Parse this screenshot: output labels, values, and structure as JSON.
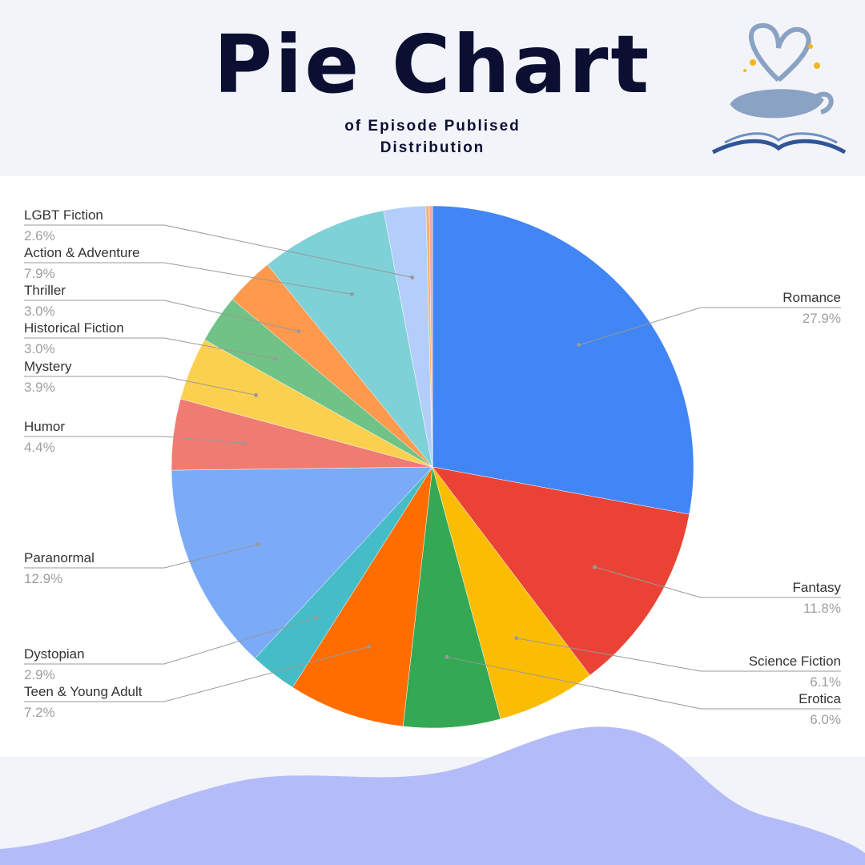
{
  "chart_data": {
    "type": "pie",
    "title": "Pie Chart",
    "subtitle": "of Episode Publised Distribution",
    "categories": [
      "Romance",
      "Fantasy",
      "Science Fiction",
      "Erotica",
      "Teen & Young Adult",
      "Dystopian",
      "Paranormal",
      "Humor",
      "Mystery",
      "Historical Fiction",
      "Thriller",
      "Action & Adventure",
      "LGBT Fiction",
      null,
      null
    ],
    "values": [
      27.9,
      11.8,
      6.1,
      6.0,
      7.2,
      2.9,
      12.9,
      4.4,
      3.9,
      3.0,
      3.0,
      7.9,
      2.6,
      0.2,
      0.2
    ],
    "value_labels": [
      "27.9%",
      "11.8%",
      "6.1%",
      "6.0%",
      "7.2%",
      "2.9%",
      "12.9%",
      "4.4%",
      "3.9%",
      "3.0%",
      "3.0%",
      "7.9%",
      "2.6%",
      null,
      null
    ],
    "colors": [
      "#4285f4",
      "#ea4335",
      "#fbbc04",
      "#34a853",
      "#ff6d01",
      "#46bdc6",
      "#7baaf7",
      "#f07b72",
      "#fcd04f",
      "#71c287",
      "#ff994d",
      "#7ed1d7",
      "#b3cefb",
      "#f6b26b",
      "#f4a6a6"
    ]
  }
}
